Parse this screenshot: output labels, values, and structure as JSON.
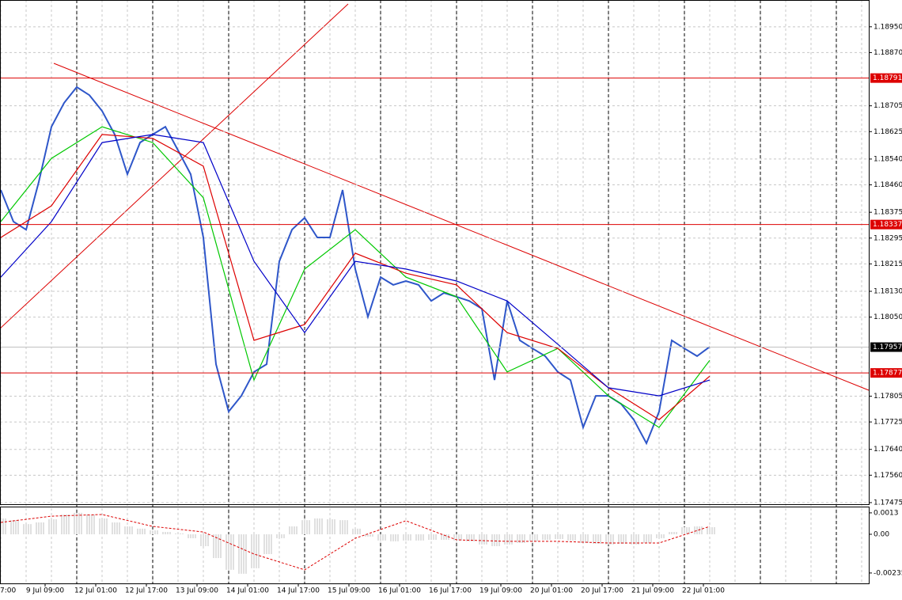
{
  "chart_data": [
    {
      "type": "line",
      "xlim": [
        -0.25,
        274.25
      ],
      "xticks": [
        {
          "value": -2,
          "label": "7:00"
        },
        {
          "value": 14,
          "label": "9 Jul 09:00"
        },
        {
          "value": 30,
          "label": "12 Jul 01:00"
        },
        {
          "value": 46,
          "label": "12 Jul 17:00"
        },
        {
          "value": 62,
          "label": "13 Jul 09:00"
        },
        {
          "value": 78,
          "label": "14 Jul 01:00"
        },
        {
          "value": 94,
          "label": "14 Jul 17:00"
        },
        {
          "value": 110,
          "label": "15 Jul 09:00"
        },
        {
          "value": 126,
          "label": "16 Jul 01:00"
        },
        {
          "value": 142,
          "label": "16 Jul 17:00"
        },
        {
          "value": 158,
          "label": "19 Jul 09:00"
        },
        {
          "value": 174,
          "label": "20 Jul 01:00"
        },
        {
          "value": 190,
          "label": "20 Jul 17:00"
        },
        {
          "value": 206,
          "label": "21 Jul 09:00"
        },
        {
          "value": 222,
          "label": "22 Jul 01:00"
        }
      ],
      "ylim": [
        1.1747,
        1.19033
      ],
      "yticks": [
        {
          "value": 1.1895,
          "label": "1.18950"
        },
        {
          "value": 1.1887,
          "label": "1.18870"
        },
        1.18705,
        1.18625,
        {
          "value": 1.1854,
          "label": "1.18540"
        },
        {
          "value": 1.1846,
          "label": "1.18460"
        },
        1.18375,
        1.18295,
        1.18215,
        {
          "value": 1.1813,
          "label": "1.18130"
        },
        {
          "value": 1.1805,
          "label": "1.18050"
        },
        1.17805,
        1.17725,
        {
          "value": 1.1764,
          "label": "1.17640"
        },
        {
          "value": 1.1756,
          "label": "1.17560"
        },
        1.17475
      ],
      "grid": true,
      "levels": [
        1.18791,
        1.18337,
        1.17877
      ],
      "level_color": "#dd0000",
      "last_price": 1.17957,
      "series": [
        {
          "color": "#2e56c9",
          "x": [
            0,
            4,
            8,
            12,
            16,
            20,
            24,
            28,
            32,
            36,
            40,
            44,
            48,
            52,
            56,
            60,
            64,
            68,
            72,
            76,
            80,
            84,
            88,
            92,
            96,
            100,
            104,
            108,
            112,
            116,
            120,
            124,
            128,
            132,
            136,
            140,
            144,
            148,
            152,
            156,
            160,
            164,
            168,
            172,
            176,
            180,
            184,
            188,
            192,
            196,
            200,
            204,
            208,
            212,
            216,
            220,
            224
          ],
          "values": [
            1.18444,
            1.18346,
            1.18321,
            1.18469,
            1.1864,
            1.18714,
            1.18763,
            1.18738,
            1.18689,
            1.18616,
            1.18493,
            1.18591,
            1.18616,
            1.1864,
            1.18567,
            1.18493,
            1.18297,
            1.17904,
            1.17757,
            1.17806,
            1.1788,
            1.17904,
            1.18223,
            1.18321,
            1.18358,
            1.18297,
            1.18297,
            1.18444,
            1.18199,
            1.18051,
            1.18174,
            1.1815,
            1.18162,
            1.1815,
            1.181,
            1.18125,
            1.18113,
            1.181,
            1.18076,
            1.17855,
            1.181,
            1.17978,
            1.17953,
            1.17929,
            1.1788,
            1.17855,
            1.17708,
            1.17806,
            1.17806,
            1.17781,
            1.17732,
            1.17659,
            1.17757,
            1.17978,
            1.17953,
            1.17929,
            1.17958
          ]
        },
        {
          "color": "#00c800",
          "x": [
            0,
            16,
            32,
            48,
            64,
            80,
            96,
            112,
            128,
            144,
            160,
            176,
            192,
            208,
            224
          ],
          "values": [
            1.18346,
            1.18542,
            1.1864,
            1.18591,
            1.1842,
            1.17855,
            1.18199,
            1.18321,
            1.18174,
            1.18113,
            1.1788,
            1.17953,
            1.17806,
            1.17708,
            1.17916
          ]
        },
        {
          "color": "#dd0000",
          "x": [
            0,
            16,
            32,
            48,
            64,
            80,
            96,
            112,
            128,
            144,
            160,
            176,
            192,
            208,
            224
          ],
          "values": [
            1.18297,
            1.18395,
            1.18616,
            1.18604,
            1.18518,
            1.17978,
            1.18027,
            1.18248,
            1.18186,
            1.1815,
            1.18002,
            1.17953,
            1.17831,
            1.17732,
            1.17867
          ]
        },
        {
          "color": "#0000c8",
          "x": [
            0,
            16,
            32,
            48,
            64,
            80,
            96,
            112,
            128,
            144,
            160,
            176,
            192,
            208,
            224
          ],
          "values": [
            1.18174,
            1.18346,
            1.18591,
            1.18616,
            1.18591,
            1.18223,
            1.18002,
            1.18223,
            1.18199,
            1.18162,
            1.181,
            1.17966,
            1.17831,
            1.17806,
            1.17855
          ]
        }
      ]
    },
    {
      "type": "bar",
      "xlim": [
        -0.25,
        274.25
      ],
      "ylim": [
        -0.00298,
        0.00168
      ],
      "yticks": [
        0.0013,
        {
          "value": 0,
          "label": "0.00"
        },
        -0.00235
      ],
      "series": [
        {
          "color": "#c0c0c0",
          "x": [
            0,
            4,
            8,
            12,
            16,
            20,
            24,
            28,
            32,
            36,
            40,
            44,
            48,
            52,
            56,
            60,
            64,
            68,
            72,
            76,
            80,
            84,
            88,
            92,
            96,
            100,
            104,
            108,
            112,
            116,
            120,
            124,
            128,
            132,
            136,
            140,
            144,
            148,
            152,
            156,
            160,
            164,
            168,
            172,
            176,
            180,
            184,
            188,
            192,
            196,
            200,
            204,
            208,
            212,
            216,
            220,
            224
          ],
          "values": [
            0.00096,
            0.00086,
            0.00062,
            0.00072,
            0.00091,
            0.0012,
            0.0013,
            0.0012,
            0.00096,
            0.00072,
            0.00048,
            0.00034,
            0.00024,
            0.00014,
            5e-05,
            -0.00024,
            -0.00072,
            -0.00144,
            -0.00216,
            -0.0024,
            -0.00206,
            -0.0012,
            -0.00024,
            0.00048,
            0.00086,
            0.00096,
            0.00091,
            0.00086,
            0.00034,
            -0.00014,
            -0.00038,
            -0.00043,
            -0.00038,
            -0.00038,
            -0.00034,
            -0.00034,
            -0.00038,
            -0.00043,
            -0.00062,
            -0.00072,
            -0.00062,
            -0.00053,
            -0.00043,
            -0.00034,
            -0.00029,
            -0.00038,
            -0.00053,
            -0.00058,
            -0.00062,
            -0.00058,
            -0.00062,
            -0.00053,
            -0.00024,
            0.00014,
            0.00043,
            0.00048,
            0.00043
          ]
        },
        {
          "color": "#dd0000",
          "x": [
            0,
            16,
            32,
            48,
            64,
            80,
            96,
            112,
            128,
            144,
            160,
            176,
            192,
            208,
            224
          ],
          "values": [
            0.00072,
            0.0011,
            0.0012,
            0.00048,
            0.00014,
            -0.0012,
            -0.00216,
            -0.00024,
            0.00082,
            -0.00034,
            -0.00043,
            -0.00043,
            -0.00053,
            -0.00053,
            0.00048
          ]
        }
      ]
    }
  ]
}
